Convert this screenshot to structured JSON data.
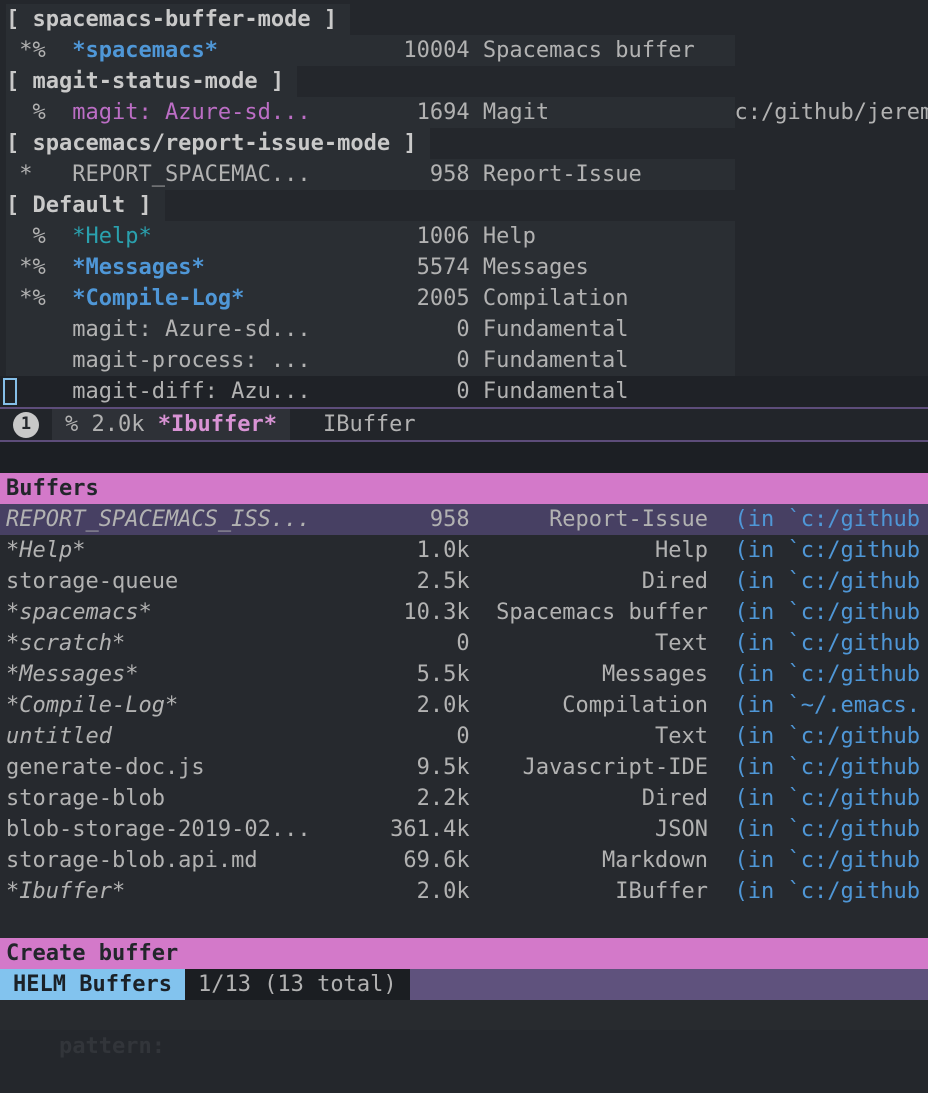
{
  "colors_note": "spacemacs-dark theme",
  "ibuffer": {
    "groups": [
      {
        "header": "[ spacemacs-buffer-mode ]",
        "rows": [
          {
            "flags": " *%",
            "name": "*spacemacs*",
            "size": "10004",
            "mode": "Spacemacs buffer",
            "filename": "",
            "style": "blue",
            "current": false
          }
        ]
      },
      {
        "header": "[ magit-status-mode ]",
        "rows": [
          {
            "flags": "  %",
            "name": "magit: Azure-sd...",
            "size": "1694",
            "mode": "Magit",
            "filename": "c:/github/jerem",
            "style": "magenta",
            "current": false
          }
        ]
      },
      {
        "header": "[ spacemacs/report-issue-mode ]",
        "rows": [
          {
            "flags": " * ",
            "name": "REPORT_SPACEMAC...",
            "size": "958",
            "mode": "Report-Issue",
            "filename": "",
            "style": "plain",
            "current": false
          }
        ]
      },
      {
        "header": "[ Default ]",
        "rows": [
          {
            "flags": "  %",
            "name": "*Help*",
            "size": "1006",
            "mode": "Help",
            "filename": "",
            "style": "teal",
            "current": false
          },
          {
            "flags": " *%",
            "name": "*Messages*",
            "size": "5574",
            "mode": "Messages",
            "filename": "",
            "style": "blue",
            "current": false
          },
          {
            "flags": " *%",
            "name": "*Compile-Log*",
            "size": "2005",
            "mode": "Compilation",
            "filename": "",
            "style": "blue",
            "current": false
          },
          {
            "flags": "   ",
            "name": "magit: Azure-sd...",
            "size": "0",
            "mode": "Fundamental",
            "filename": "",
            "style": "plain",
            "current": false
          },
          {
            "flags": "   ",
            "name": "magit-process: ...",
            "size": "0",
            "mode": "Fundamental",
            "filename": "",
            "style": "plain",
            "current": false
          },
          {
            "flags": "   ",
            "name": "magit-diff: Azu...",
            "size": "0",
            "mode": "Fundamental",
            "filename": "",
            "style": "plain",
            "current": true
          }
        ]
      }
    ],
    "modeline": {
      "window_number": "1",
      "state": "%",
      "size": "2.0k",
      "buffer_name": "*Ibuffer*",
      "major_mode": "IBuffer"
    }
  },
  "helm": {
    "prompt": "pattern:",
    "sources": [
      {
        "header": "Buffers"
      },
      {
        "header": "Create buffer"
      }
    ],
    "rows": [
      {
        "name": "REPORT_SPACEMACS_ISS...",
        "size": "958",
        "mode": "Report-Issue",
        "path": "(in `c:/github",
        "italic": true,
        "selected": true
      },
      {
        "name": "*Help*",
        "size": "1.0k",
        "mode": "Help",
        "path": "(in `c:/github",
        "italic": true,
        "selected": false
      },
      {
        "name": "storage-queue",
        "size": "2.5k",
        "mode": "Dired",
        "path": "(in `c:/github",
        "italic": false,
        "selected": false
      },
      {
        "name": "*spacemacs*",
        "size": "10.3k",
        "mode": "Spacemacs buffer",
        "path": "(in `c:/github",
        "italic": true,
        "selected": false
      },
      {
        "name": "*scratch*",
        "size": "0",
        "mode": "Text",
        "path": "(in `c:/github",
        "italic": true,
        "selected": false
      },
      {
        "name": "*Messages*",
        "size": "5.5k",
        "mode": "Messages",
        "path": "(in `c:/github",
        "italic": true,
        "selected": false
      },
      {
        "name": "*Compile-Log*",
        "size": "2.0k",
        "mode": "Compilation",
        "path": "(in `~/.emacs.",
        "italic": true,
        "selected": false
      },
      {
        "name": "untitled",
        "size": "0",
        "mode": "Text",
        "path": "(in `c:/github",
        "italic": true,
        "selected": false
      },
      {
        "name": "generate-doc.js",
        "size": "9.5k",
        "mode": "Javascript-IDE",
        "path": "(in `c:/github",
        "italic": false,
        "selected": false
      },
      {
        "name": "storage-blob",
        "size": "2.2k",
        "mode": "Dired",
        "path": "(in `c:/github",
        "italic": false,
        "selected": false
      },
      {
        "name": "blob-storage-2019-02...",
        "size": "361.4k",
        "mode": "JSON",
        "path": "(in `c:/github",
        "italic": false,
        "selected": false
      },
      {
        "name": "storage-blob.api.md",
        "size": "69.6k",
        "mode": "Markdown",
        "path": "(in `c:/github",
        "italic": false,
        "selected": false
      },
      {
        "name": "*Ibuffer*",
        "size": "2.0k",
        "mode": "IBuffer",
        "path": "(in `c:/github",
        "italic": true,
        "selected": false
      }
    ],
    "modeline": {
      "left": "HELM Buffers",
      "counter": "1/13 (13 total)"
    }
  },
  "echo": {
    "ghost_text": "pattern:"
  }
}
